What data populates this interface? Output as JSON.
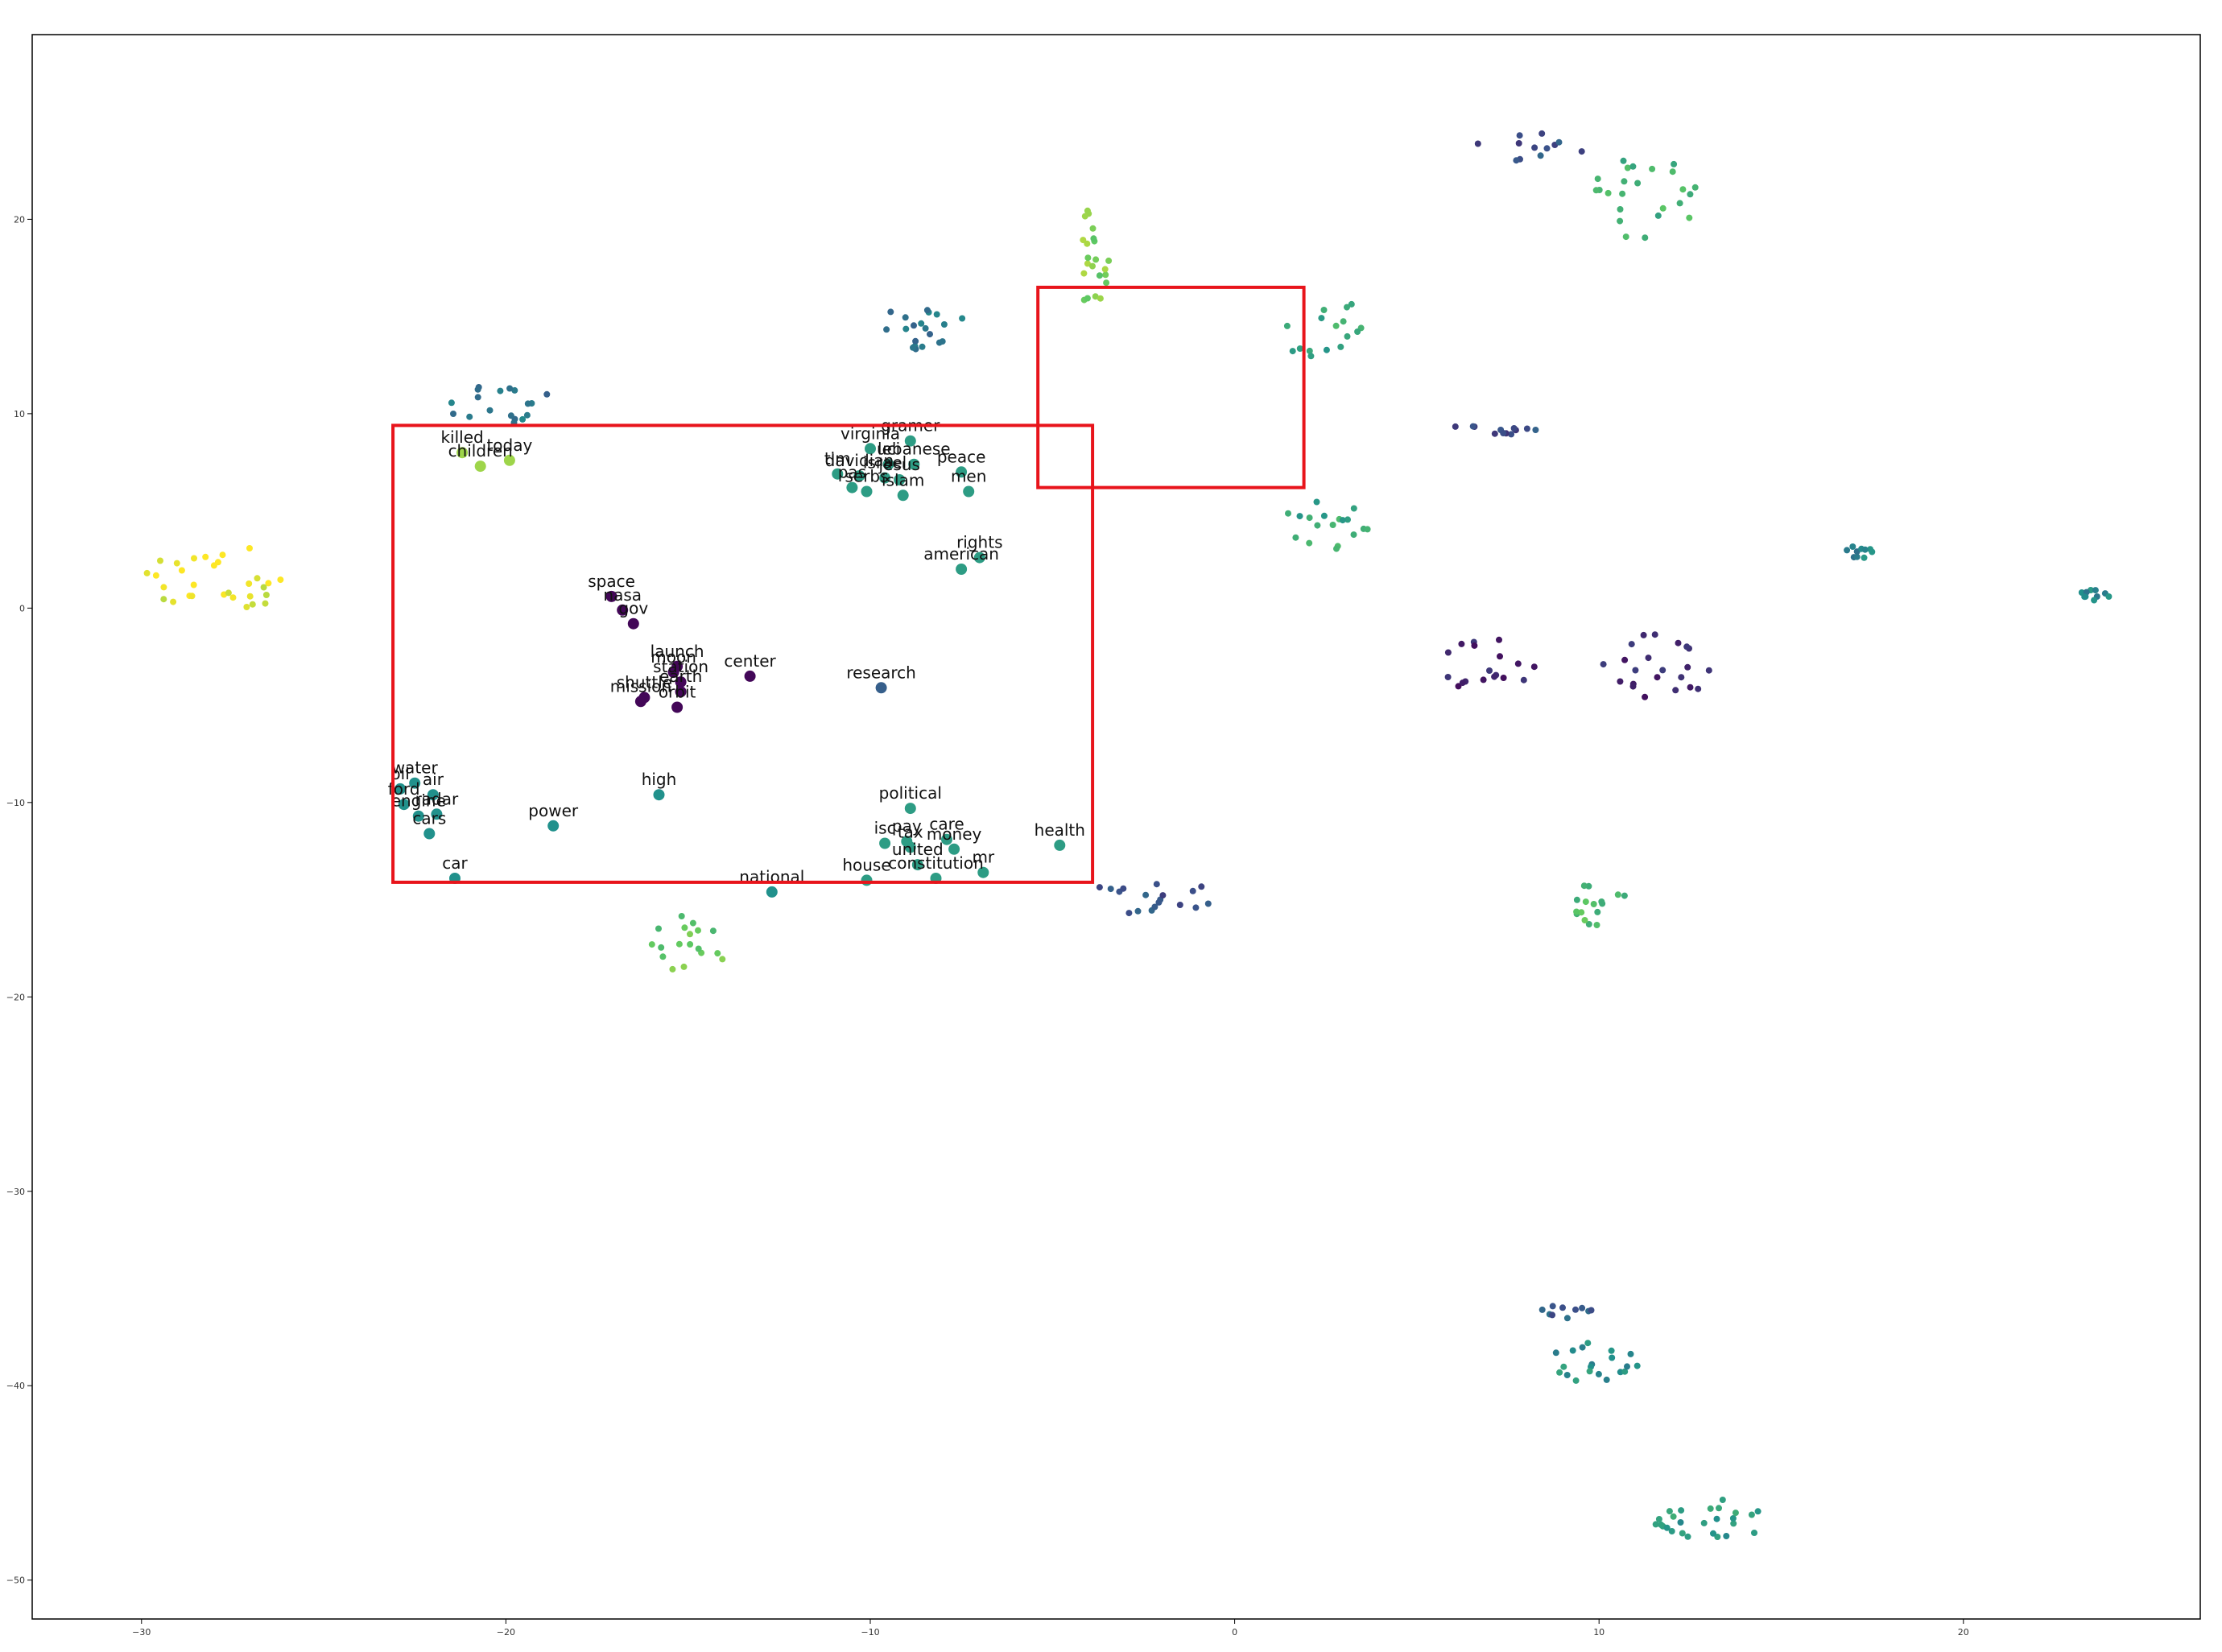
{
  "chart_data": {
    "type": "scatter",
    "title": "",
    "xlabel": "",
    "ylabel": "",
    "xlim": [
      -33,
      26.5
    ],
    "ylim": [
      -52,
      29.5
    ],
    "grid": false,
    "colormap": "viridis",
    "x_ticks": [
      -30,
      -20,
      -10,
      0,
      10,
      20
    ],
    "y_ticks": [
      -50,
      -40,
      -30,
      -20,
      -10,
      0,
      10,
      20
    ],
    "highlight_boxes": [
      {
        "x0": -23.1,
        "x1": -3.9,
        "y0": -14.1,
        "y1": 9.4,
        "color": "#e8141b"
      },
      {
        "x0": -5.4,
        "x1": 1.9,
        "y0": 6.2,
        "y1": 16.5,
        "color": "#e8141b"
      }
    ],
    "labeled_points": [
      {
        "label": "killed",
        "x": -21.2,
        "y": 8.0,
        "c": 0.85
      },
      {
        "label": "today",
        "x": -19.9,
        "y": 7.6,
        "c": 0.85
      },
      {
        "label": "children",
        "x": -20.7,
        "y": 7.3,
        "c": 0.85
      },
      {
        "label": "virginia",
        "x": -10.0,
        "y": 8.2,
        "c": 0.55
      },
      {
        "label": "gramer",
        "x": -8.9,
        "y": 8.6,
        "c": 0.55
      },
      {
        "label": "uci",
        "x": -9.5,
        "y": 7.4,
        "c": 0.55
      },
      {
        "label": "lebanese",
        "x": -8.8,
        "y": 7.4,
        "c": 0.55
      },
      {
        "label": "peace",
        "x": -7.5,
        "y": 7.0,
        "c": 0.55
      },
      {
        "label": "tim",
        "x": -10.9,
        "y": 6.9,
        "c": 0.55
      },
      {
        "label": "davidian",
        "x": -10.3,
        "y": 6.8,
        "c": 0.55
      },
      {
        "label": "israel",
        "x": -9.6,
        "y": 6.7,
        "c": 0.55
      },
      {
        "label": "jesus",
        "x": -9.2,
        "y": 6.6,
        "c": 0.55
      },
      {
        "label": "men",
        "x": -7.3,
        "y": 6.0,
        "c": 0.55
      },
      {
        "label": "pas",
        "x": -10.5,
        "y": 6.2,
        "c": 0.55
      },
      {
        "label": "serbs",
        "x": -10.1,
        "y": 6.0,
        "c": 0.55
      },
      {
        "label": "islam",
        "x": -9.1,
        "y": 5.8,
        "c": 0.55
      },
      {
        "label": "rights",
        "x": -7.0,
        "y": 2.6,
        "c": 0.55
      },
      {
        "label": "american",
        "x": -7.5,
        "y": 2.0,
        "c": 0.55
      },
      {
        "label": "space",
        "x": -17.1,
        "y": 0.6,
        "c": 0.02
      },
      {
        "label": "nasa",
        "x": -16.8,
        "y": -0.1,
        "c": 0.02
      },
      {
        "label": "gov",
        "x": -16.5,
        "y": -0.8,
        "c": 0.02
      },
      {
        "label": "launch",
        "x": -15.3,
        "y": -3.0,
        "c": 0.02
      },
      {
        "label": "moon",
        "x": -15.4,
        "y": -3.3,
        "c": 0.02
      },
      {
        "label": "station",
        "x": -15.2,
        "y": -3.8,
        "c": 0.02
      },
      {
        "label": "earth",
        "x": -15.2,
        "y": -4.3,
        "c": 0.02
      },
      {
        "label": "shuttle",
        "x": -16.2,
        "y": -4.6,
        "c": 0.02
      },
      {
        "label": "mission",
        "x": -16.3,
        "y": -4.8,
        "c": 0.02
      },
      {
        "label": "orbit",
        "x": -15.3,
        "y": -5.1,
        "c": 0.02
      },
      {
        "label": "center",
        "x": -13.3,
        "y": -3.5,
        "c": 0.02
      },
      {
        "label": "research",
        "x": -9.7,
        "y": -4.1,
        "c": 0.3
      },
      {
        "label": "water",
        "x": -22.5,
        "y": -9.0,
        "c": 0.5
      },
      {
        "label": "air",
        "x": -22.0,
        "y": -9.6,
        "c": 0.5
      },
      {
        "label": "oil",
        "x": -22.9,
        "y": -9.3,
        "c": 0.5
      },
      {
        "label": "ford",
        "x": -22.8,
        "y": -10.1,
        "c": 0.5
      },
      {
        "label": "radar",
        "x": -21.9,
        "y": -10.6,
        "c": 0.5
      },
      {
        "label": "engine",
        "x": -22.4,
        "y": -10.7,
        "c": 0.5
      },
      {
        "label": "cars",
        "x": -22.1,
        "y": -11.6,
        "c": 0.5
      },
      {
        "label": "car",
        "x": -21.4,
        "y": -13.9,
        "c": 0.5
      },
      {
        "label": "power",
        "x": -18.7,
        "y": -11.2,
        "c": 0.5
      },
      {
        "label": "high",
        "x": -15.8,
        "y": -9.6,
        "c": 0.5
      },
      {
        "label": "national",
        "x": -12.7,
        "y": -14.6,
        "c": 0.5
      },
      {
        "label": "political",
        "x": -8.9,
        "y": -10.3,
        "c": 0.55
      },
      {
        "label": "isc",
        "x": -9.6,
        "y": -12.1,
        "c": 0.55
      },
      {
        "label": "pay",
        "x": -9.0,
        "y": -12.0,
        "c": 0.55
      },
      {
        "label": "care",
        "x": -7.9,
        "y": -11.9,
        "c": 0.55
      },
      {
        "label": "money",
        "x": -7.7,
        "y": -12.4,
        "c": 0.55
      },
      {
        "label": "tax",
        "x": -8.9,
        "y": -12.3,
        "c": 0.55
      },
      {
        "label": "united",
        "x": -8.7,
        "y": -13.2,
        "c": 0.55
      },
      {
        "label": "house",
        "x": -10.1,
        "y": -14.0,
        "c": 0.55
      },
      {
        "label": "mr",
        "x": -6.9,
        "y": -13.6,
        "c": 0.55
      },
      {
        "label": "constitution",
        "x": -8.2,
        "y": -13.9,
        "c": 0.55
      },
      {
        "label": "health",
        "x": -4.8,
        "y": -12.2,
        "c": 0.55
      }
    ],
    "clusters": [
      {
        "name": "far-left-yellow",
        "cx": -28,
        "cy": 1.5,
        "rx": 2.2,
        "ry": 1.9,
        "n": 30,
        "c": 0.98
      },
      {
        "name": "upper-left-teal",
        "cx": -20.2,
        "cy": 10.5,
        "rx": 1.6,
        "ry": 1.0,
        "n": 18,
        "c": 0.38
      },
      {
        "name": "upper-mid-teal",
        "cx": -8.4,
        "cy": 14.3,
        "rx": 1.7,
        "ry": 1.2,
        "n": 20,
        "c": 0.38
      },
      {
        "name": "lime-column",
        "cx": -3.9,
        "cy": 18.0,
        "rx": 0.5,
        "ry": 2.6,
        "n": 22,
        "c": 0.8
      },
      {
        "name": "green-right-upper",
        "cx": 2.4,
        "cy": 14.5,
        "rx": 1.2,
        "ry": 1.9,
        "n": 16,
        "c": 0.6
      },
      {
        "name": "green-mid",
        "cx": 2.5,
        "cy": 4.2,
        "rx": 1.3,
        "ry": 1.4,
        "n": 18,
        "c": 0.6
      },
      {
        "name": "navy-top-right",
        "cx": 8.2,
        "cy": 23.8,
        "rx": 1.6,
        "ry": 0.9,
        "n": 12,
        "c": 0.25
      },
      {
        "name": "green-top-right",
        "cx": 11.2,
        "cy": 21.2,
        "rx": 1.5,
        "ry": 2.3,
        "n": 24,
        "c": 0.65
      },
      {
        "name": "navy-row",
        "cx": 7.2,
        "cy": 9.2,
        "rx": 1.4,
        "ry": 0.3,
        "n": 12,
        "c": 0.25
      },
      {
        "name": "purple-right",
        "cx": 7.0,
        "cy": -3.0,
        "rx": 1.4,
        "ry": 1.5,
        "n": 18,
        "c": 0.1
      },
      {
        "name": "purple-right2",
        "cx": 11.6,
        "cy": -3.1,
        "rx": 1.5,
        "ry": 1.8,
        "n": 22,
        "c": 0.1
      },
      {
        "name": "bottom-mid-navy",
        "cx": -2.5,
        "cy": -14.9,
        "rx": 2.2,
        "ry": 0.9,
        "n": 18,
        "c": 0.25
      },
      {
        "name": "bottom-left-green",
        "cx": -15.0,
        "cy": -17.3,
        "rx": 1.2,
        "ry": 1.6,
        "n": 18,
        "c": 0.75
      },
      {
        "name": "green-right-low",
        "cx": 10.0,
        "cy": -15.2,
        "rx": 0.8,
        "ry": 1.2,
        "n": 16,
        "c": 0.7
      },
      {
        "name": "ring-right",
        "cx": 17.1,
        "cy": 2.8,
        "rx": 0.5,
        "ry": 0.4,
        "n": 10,
        "c": 0.45
      },
      {
        "name": "ring-far-right",
        "cx": 23.5,
        "cy": 0.7,
        "rx": 0.6,
        "ry": 0.3,
        "n": 10,
        "c": 0.45
      },
      {
        "name": "mixed-low-1",
        "cx": 9.1,
        "cy": -36.2,
        "rx": 0.8,
        "ry": 0.4,
        "n": 10,
        "c": 0.3
      },
      {
        "name": "mixed-low-2",
        "cx": 9.7,
        "cy": -38.8,
        "rx": 1.4,
        "ry": 1.0,
        "n": 20,
        "c": 0.5
      },
      {
        "name": "mixed-bottom",
        "cx": 13.0,
        "cy": -47.0,
        "rx": 1.6,
        "ry": 1.2,
        "n": 26,
        "c": 0.55
      }
    ]
  }
}
